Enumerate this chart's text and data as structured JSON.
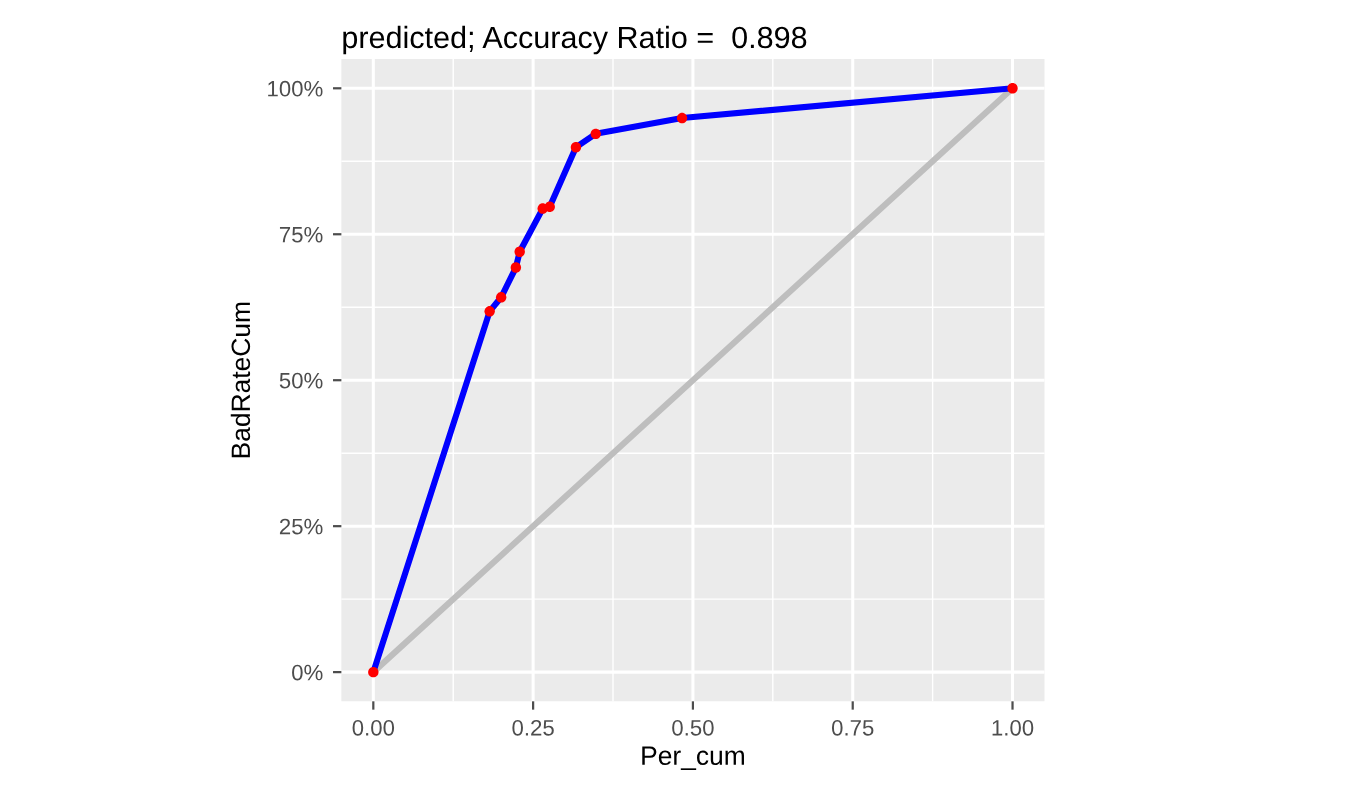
{
  "chart_data": {
    "type": "line",
    "title": "predicted; Accuracy Ratio =  0.898",
    "xlabel": "Per_cum",
    "ylabel": "BadRateCum",
    "series": [
      {
        "color": "#bebebe",
        "x": [
          0,
          1
        ],
        "values": [
          0,
          1
        ]
      },
      {
        "color": "#0000ff",
        "x": [
          0,
          0.182,
          0.2,
          0.223,
          0.229,
          0.265,
          0.276,
          0.317,
          0.348,
          0.483,
          1
        ],
        "values": [
          0,
          0.618,
          0.642,
          0.693,
          0.72,
          0.794,
          0.797,
          0.899,
          0.922,
          0.949,
          1
        ]
      },
      {
        "type": "scatter",
        "color": "#ff0000",
        "marker": "circle",
        "x": [
          0,
          0.182,
          0.2,
          0.223,
          0.229,
          0.265,
          0.276,
          0.317,
          0.348,
          0.483,
          1
        ],
        "values": [
          0,
          0.618,
          0.642,
          0.693,
          0.72,
          0.794,
          0.797,
          0.899,
          0.922,
          0.949,
          1
        ]
      }
    ],
    "xlim": [
      -0.05,
      1.05
    ],
    "ylim": [
      -0.05,
      1.05
    ],
    "xticks": [
      {
        "value": 0,
        "label": "0.00"
      },
      {
        "value": 0.25,
        "label": "0.25"
      },
      {
        "value": 0.5,
        "label": "0.50"
      },
      {
        "value": 0.75,
        "label": "0.75"
      },
      {
        "value": 1,
        "label": "1.00"
      }
    ],
    "yticks": [
      {
        "value": 0,
        "label": "0%"
      },
      {
        "value": 0.25,
        "label": "25%"
      },
      {
        "value": 0.5,
        "label": "50%"
      },
      {
        "value": 0.75,
        "label": "75%"
      },
      {
        "value": 1,
        "label": "100%"
      }
    ],
    "grid": true
  }
}
